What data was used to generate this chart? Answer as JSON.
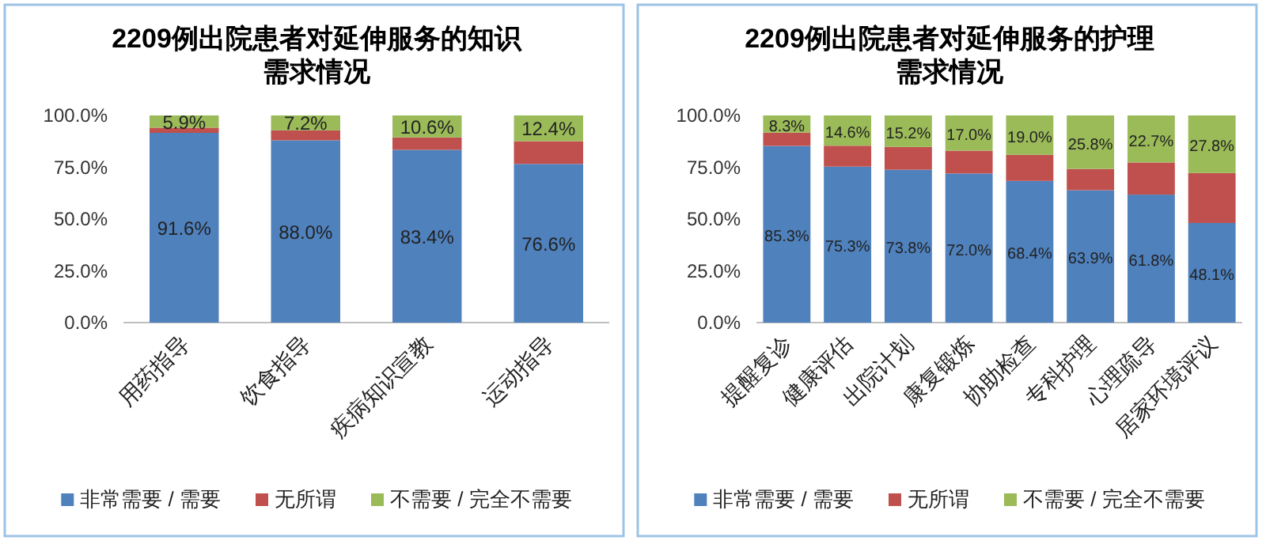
{
  "chart_data": [
    {
      "type": "bar",
      "title": "2209例出院患者对延伸服务的知识需求情况",
      "categories": [
        "用药指导",
        "饮食指导",
        "疾病知识宣教",
        "运动指导"
      ],
      "stacked": true,
      "legend": "bottom",
      "ylim": [
        0,
        100
      ],
      "yticks": [
        {
          "value": 0,
          "label": "0.0%"
        },
        {
          "value": 25,
          "label": "25.0%"
        },
        {
          "value": 50,
          "label": "50.0%"
        },
        {
          "value": 75,
          "label": "75.0%"
        },
        {
          "value": 100,
          "label": "100.0%"
        }
      ],
      "series": [
        {
          "name": "非常需要 / 需要",
          "color": "#4f81bd",
          "values": [
            91.6,
            88.0,
            83.4,
            76.6
          ],
          "value_labels": [
            "91.6%",
            "88.0%",
            "83.4%",
            "76.6%"
          ]
        },
        {
          "name": "无所谓",
          "color": "#c0504d",
          "values": [
            2.5,
            4.8,
            6.0,
            11.0
          ]
        },
        {
          "name": "不需要 / 完全不需要",
          "color": "#9bbb59",
          "values": [
            5.9,
            7.2,
            10.6,
            12.4
          ],
          "value_labels": [
            "5.9%",
            "7.2%",
            "10.6%",
            "12.4%"
          ]
        }
      ]
    },
    {
      "type": "bar",
      "title": "2209例出院患者对延伸服务的护理需求情况",
      "categories": [
        "提醒复诊",
        "健康评估",
        "出院计划",
        "康复锻炼",
        "协助检查",
        "专科护理",
        "心理疏导",
        "居家环境评议"
      ],
      "stacked": true,
      "legend": "bottom",
      "ylim": [
        0,
        100
      ],
      "yticks": [
        {
          "value": 0,
          "label": "0.0%"
        },
        {
          "value": 25,
          "label": "25.0%"
        },
        {
          "value": 50,
          "label": "50.0%"
        },
        {
          "value": 75,
          "label": "75.0%"
        },
        {
          "value": 100,
          "label": "100.0%"
        }
      ],
      "series": [
        {
          "name": "非常需要 / 需要",
          "color": "#4f81bd",
          "values": [
            85.3,
            75.3,
            73.8,
            72.0,
            68.4,
            63.9,
            61.8,
            48.1
          ],
          "value_labels": [
            "85.3%",
            "75.3%",
            "73.8%",
            "72.0%",
            "68.4%",
            "63.9%",
            "61.8%",
            "48.1%"
          ]
        },
        {
          "name": "无所谓",
          "color": "#c0504d",
          "values": [
            6.4,
            10.1,
            11.0,
            11.0,
            12.6,
            10.3,
            15.5,
            24.1
          ]
        },
        {
          "name": "不需要 / 完全不需要",
          "color": "#9bbb59",
          "values": [
            8.3,
            14.6,
            15.2,
            17.0,
            19.0,
            25.8,
            22.7,
            27.8
          ],
          "value_labels": [
            "8.3%",
            "14.6%",
            "15.2%",
            "17.0%",
            "19.0%",
            "25.8%",
            "22.7%",
            "27.8%"
          ]
        }
      ]
    }
  ]
}
